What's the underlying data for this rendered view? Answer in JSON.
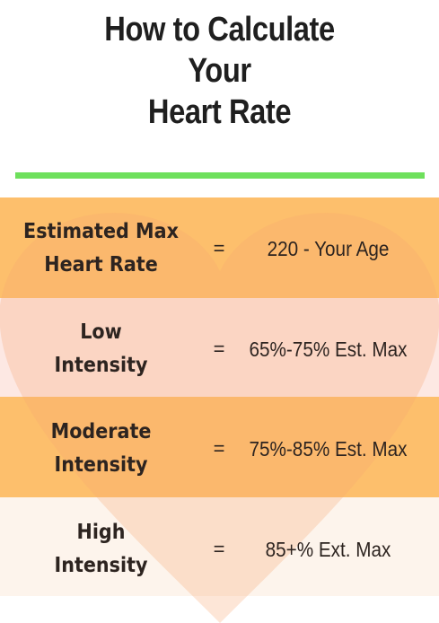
{
  "title": {
    "line1": "How to Calculate",
    "line2": "Your",
    "line3": "Heart Rate"
  },
  "colors": {
    "divider": "#6ee05c",
    "band_orange": "#fdbf6c",
    "band_pink": "#fde8e3",
    "band_cream": "#fdf4ec",
    "heart": "#f7a470"
  },
  "rows": [
    {
      "label_line1": "Estimated Max",
      "label_line2": "Heart Rate",
      "equals": "=",
      "value": "220 - Your Age"
    },
    {
      "label_line1": "Low",
      "label_line2": "Intensity",
      "equals": "=",
      "value": "65%-75% Est. Max"
    },
    {
      "label_line1": "Moderate",
      "label_line2": "Intensity",
      "equals": "=",
      "value": "75%-85% Est. Max"
    },
    {
      "label_line1": "High",
      "label_line2": "Intensity",
      "equals": "=",
      "value": "85+% Ext. Max"
    }
  ],
  "background_icon": "heart-icon"
}
